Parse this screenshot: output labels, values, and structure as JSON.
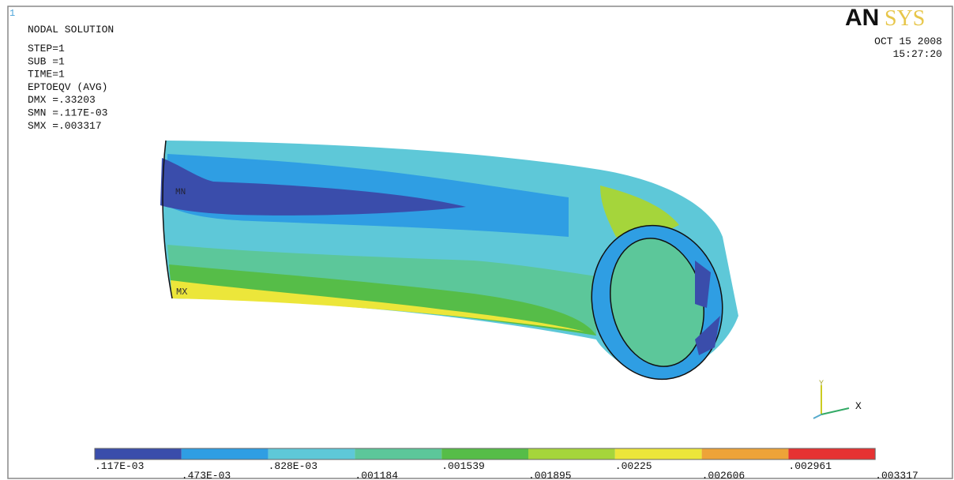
{
  "window_number": "1",
  "brand": {
    "left": "AN",
    "right": "SYS"
  },
  "header": {
    "title": "NODAL SOLUTION",
    "lines": [
      "STEP=1",
      "SUB =1",
      "TIME=1",
      "EPTOEQV   (AVG)",
      "DMX =.33203",
      "SMN =.117E-03",
      "SMX =.003317"
    ]
  },
  "timestamp": {
    "date": "OCT 15 2008",
    "time": "15:27:20"
  },
  "plot_labels": {
    "min": "MN",
    "max": "MX"
  },
  "triad": {
    "y": "Y",
    "x": "X"
  },
  "legend": {
    "colors": [
      "#3a4dab",
      "#2f9ee3",
      "#5ec8d8",
      "#5cc79a",
      "#56bd48",
      "#a5d53b",
      "#ece63a",
      "#eea338",
      "#e63232"
    ],
    "labels": [
      ".117E-03",
      ".473E-03",
      ".828E-03",
      ".001184",
      ".001539",
      ".001895",
      ".00225",
      ".002606",
      ".002961",
      ".003317"
    ]
  }
}
